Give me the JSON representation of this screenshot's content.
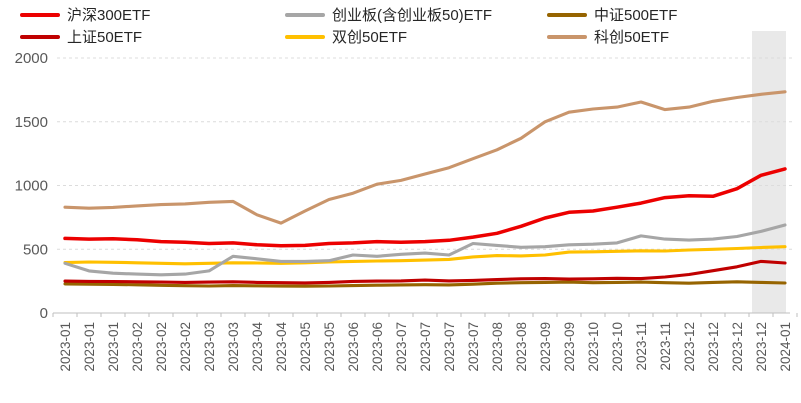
{
  "legend": {
    "items": [
      {
        "label": "沪深300ETF",
        "color": "#ec0000"
      },
      {
        "label": "创业板(含创业板50)ETF",
        "color": "#a6a6a6"
      },
      {
        "label": "中证500ETF",
        "color": "#966400"
      },
      {
        "label": "上证50ETF",
        "color": "#c00000"
      },
      {
        "label": "双创50ETF",
        "color": "#ffc000"
      },
      {
        "label": "科创50ETF",
        "color": "#c9956b"
      }
    ]
  },
  "chart_data": {
    "type": "line",
    "title": "",
    "xlabel": "",
    "ylabel": "",
    "ylim": [
      0,
      2000
    ],
    "y_ticks": [
      0,
      500,
      1000,
      1500,
      2000
    ],
    "grid": "horizontal-dashed",
    "legend_position": "top",
    "x_labels": [
      "2023-01",
      "2023-01",
      "2023-01",
      "2023-02",
      "2023-02",
      "2023-02",
      "2023-03",
      "2023-03",
      "2023-04",
      "2023-04",
      "2023-05",
      "2023-05",
      "2023-06",
      "2023-06",
      "2023-07",
      "2023-07",
      "2023-07",
      "2023-07",
      "2023-08",
      "2023-08",
      "2023-09",
      "2023-09",
      "2023-10",
      "2023-10",
      "2023-11",
      "2023-11",
      "2023-12",
      "2023-12",
      "2023-12",
      "2023-12",
      "2024-01"
    ],
    "highlight_band": {
      "start_label_index": 29,
      "end_label_index": 30,
      "color": "#e9e9e9"
    },
    "series": [
      {
        "name": "科创50ETF",
        "color": "#c9956b",
        "values": [
          830,
          822,
          828,
          840,
          850,
          856,
          868,
          875,
          770,
          705,
          800,
          890,
          940,
          1010,
          1040,
          1090,
          1140,
          1210,
          1280,
          1370,
          1500,
          1575,
          1600,
          1615,
          1655,
          1595,
          1615,
          1660,
          1690,
          1715,
          1735
        ]
      },
      {
        "name": "双创50ETF",
        "color": "#ffc000",
        "values": [
          395,
          400,
          398,
          394,
          390,
          386,
          390,
          394,
          392,
          390,
          394,
          400,
          405,
          408,
          410,
          415,
          420,
          440,
          450,
          448,
          455,
          478,
          480,
          484,
          488,
          486,
          494,
          500,
          506,
          514,
          520
        ]
      },
      {
        "name": "创业板(含创业板50)ETF",
        "color": "#a6a6a6",
        "values": [
          390,
          330,
          312,
          305,
          300,
          305,
          330,
          445,
          425,
          405,
          405,
          410,
          455,
          445,
          460,
          470,
          455,
          545,
          530,
          515,
          520,
          535,
          540,
          550,
          605,
          580,
          572,
          580,
          600,
          640,
          690
        ]
      },
      {
        "name": "中证500ETF",
        "color": "#966400",
        "values": [
          228,
          226,
          224,
          221,
          217,
          214,
          212,
          215,
          213,
          211,
          210,
          212,
          215,
          218,
          220,
          222,
          220,
          226,
          234,
          238,
          240,
          242,
          238,
          240,
          242,
          238,
          234,
          240,
          245,
          240,
          235
        ]
      },
      {
        "name": "上证50ETF",
        "color": "#c00000",
        "values": [
          250,
          248,
          247,
          245,
          243,
          240,
          242,
          245,
          240,
          238,
          236,
          240,
          248,
          250,
          252,
          258,
          252,
          256,
          262,
          268,
          270,
          266,
          268,
          272,
          270,
          282,
          302,
          332,
          362,
          405,
          392
        ]
      },
      {
        "name": "沪深300ETF",
        "color": "#ec0000",
        "values": [
          585,
          580,
          582,
          575,
          560,
          555,
          545,
          550,
          535,
          528,
          530,
          545,
          550,
          560,
          555,
          560,
          570,
          595,
          625,
          680,
          745,
          790,
          800,
          830,
          862,
          905,
          920,
          915,
          975,
          1080,
          1130
        ]
      }
    ]
  }
}
